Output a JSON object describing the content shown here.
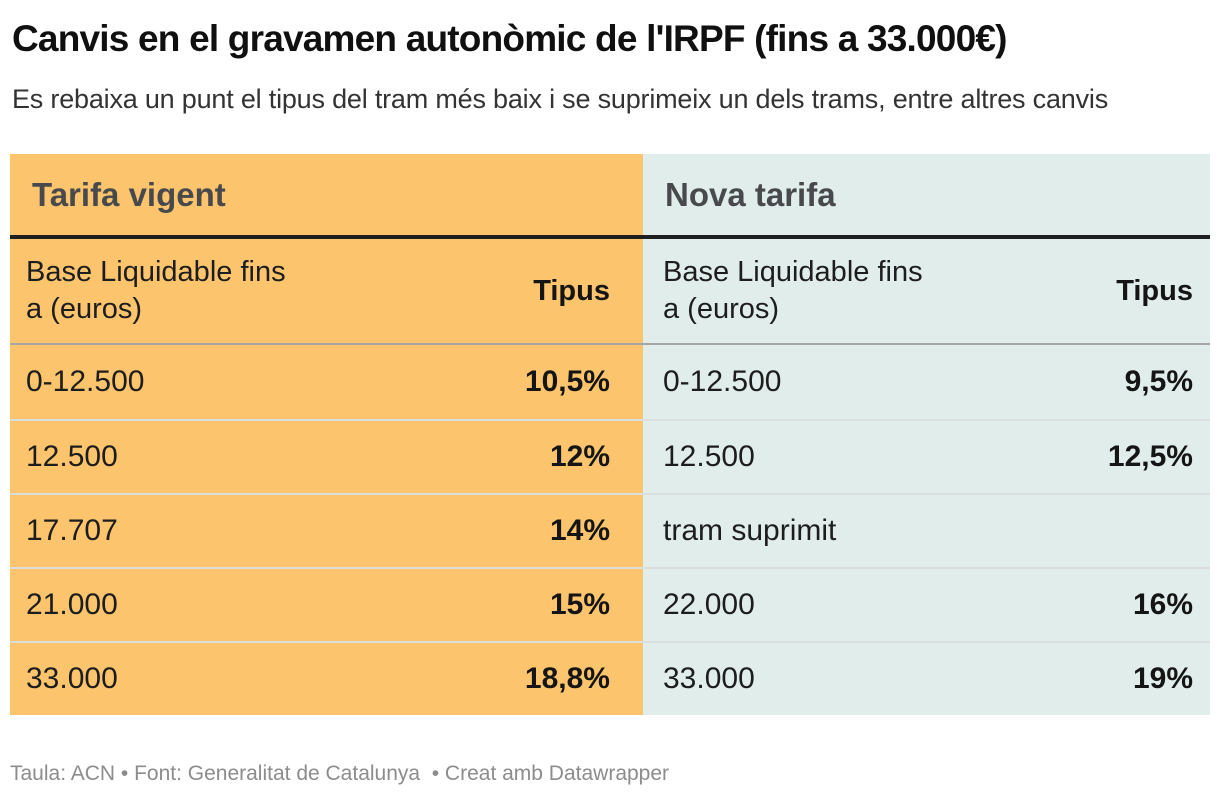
{
  "header": {
    "title": "Canvis en el gravamen autonòmic de l'IRPF (fins a 33.000€)",
    "subtitle": "Es rebaixa un punt el tipus del tram més baix i se suprimeix un dels trams, entre altres canvis"
  },
  "colors": {
    "current_tariff_bg": "#fbc46d",
    "new_tariff_bg": "#e0edea",
    "heavy_rule": "#1f1f1f",
    "header_rule": "#a5a6a7",
    "row_rule": "#dcdddd",
    "band_text": "#47494d",
    "body_text": "#1d1d1d",
    "footer_text": "#8c8c8c"
  },
  "table": {
    "left": {
      "title": "Tarifa vigent",
      "columns": {
        "base_line1": "Base Liquidable fins",
        "base_line2": "a (euros)",
        "tipus": "Tipus"
      },
      "rows": [
        {
          "base": "0-12.500",
          "tipus": "10,5%"
        },
        {
          "base": "12.500",
          "tipus": "12%"
        },
        {
          "base": "17.707",
          "tipus": "14%"
        },
        {
          "base": "21.000",
          "tipus": "15%"
        },
        {
          "base": "33.000",
          "tipus": "18,8%"
        }
      ]
    },
    "right": {
      "title": "Nova tarifa",
      "columns": {
        "base_line1": "Base Liquidable fins",
        "base_line2": "a (euros)",
        "tipus": "Tipus"
      },
      "rows": [
        {
          "base": "0-12.500",
          "tipus": "9,5%"
        },
        {
          "base": "12.500",
          "tipus": "12,5%"
        },
        {
          "base": "tram suprimit",
          "tipus": ""
        },
        {
          "base": "22.000",
          "tipus": "16%"
        },
        {
          "base": "33.000",
          "tipus": "19%"
        }
      ]
    }
  },
  "footer": {
    "text": "Taula: ACN • Font: Generalitat de Catalunya  • Creat amb Datawrapper"
  },
  "chart_data": {
    "type": "table",
    "title": "Canvis en el gravamen autonòmic de l'IRPF (fins a 33.000€)",
    "subtitle": "Es rebaixa un punt el tipus del tram més baix i se suprimeix un dels trams, entre altres canvis",
    "tables": [
      {
        "name": "Tarifa vigent",
        "columns": [
          "Base Liquidable fins a (euros)",
          "Tipus"
        ],
        "rows": [
          [
            "0-12.500",
            "10,5%"
          ],
          [
            "12.500",
            "12%"
          ],
          [
            "17.707",
            "14%"
          ],
          [
            "21.000",
            "15%"
          ],
          [
            "33.000",
            "18,8%"
          ]
        ]
      },
      {
        "name": "Nova tarifa",
        "columns": [
          "Base Liquidable fins a (euros)",
          "Tipus"
        ],
        "rows": [
          [
            "0-12.500",
            "9,5%"
          ],
          [
            "12.500",
            "12,5%"
          ],
          [
            "tram suprimit",
            ""
          ],
          [
            "22.000",
            "16%"
          ],
          [
            "33.000",
            "19%"
          ]
        ]
      }
    ],
    "source": "Taula: ACN • Font: Generalitat de Catalunya • Creat amb Datawrapper",
    "layout_hints": {
      "legend": "none",
      "grid": "off",
      "value_alignment": "right"
    }
  }
}
